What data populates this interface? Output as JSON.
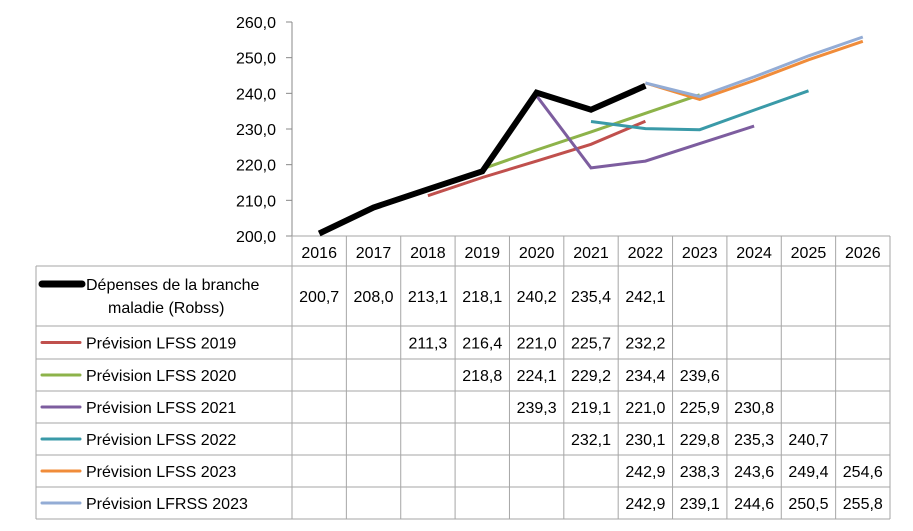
{
  "chart_data": {
    "type": "line",
    "categories": [
      "2016",
      "2017",
      "2018",
      "2019",
      "2020",
      "2021",
      "2022",
      "2023",
      "2024",
      "2025",
      "2026"
    ],
    "ylim": [
      200,
      260
    ],
    "yticks": [
      "200,0",
      "210,0",
      "220,0",
      "230,0",
      "240,0",
      "250,0",
      "260,0"
    ],
    "grid": false,
    "legend": "data-table",
    "series": [
      {
        "name_lines": [
          "Dépenses de la branche",
          "maladie (Robss)"
        ],
        "color": "#000000",
        "values": [
          200.7,
          208.0,
          213.1,
          218.1,
          240.2,
          235.4,
          242.1,
          null,
          null,
          null,
          null
        ],
        "labels": [
          "200,7",
          "208,0",
          "213,1",
          "218,1",
          "240,2",
          "235,4",
          "242,1",
          "",
          "",
          "",
          ""
        ]
      },
      {
        "name_lines": [
          "Prévision LFSS 2019"
        ],
        "color": "#c0504d",
        "values": [
          null,
          null,
          211.3,
          216.4,
          221.0,
          225.7,
          232.2,
          null,
          null,
          null,
          null
        ],
        "labels": [
          "",
          "",
          "211,3",
          "216,4",
          "221,0",
          "225,7",
          "232,2",
          "",
          "",
          "",
          ""
        ]
      },
      {
        "name_lines": [
          "Prévision LFSS 2020"
        ],
        "color": "#8db34a",
        "values": [
          null,
          null,
          null,
          218.8,
          224.1,
          229.2,
          234.4,
          239.6,
          null,
          null,
          null
        ],
        "labels": [
          "",
          "",
          "",
          "218,8",
          "224,1",
          "229,2",
          "234,4",
          "239,6",
          "",
          "",
          ""
        ]
      },
      {
        "name_lines": [
          "Prévision LFSS 2021"
        ],
        "color": "#7d5d9f",
        "values": [
          null,
          null,
          null,
          null,
          239.3,
          219.1,
          221.0,
          225.9,
          230.8,
          null,
          null
        ],
        "labels": [
          "",
          "",
          "",
          "",
          "239,3",
          "219,1",
          "221,0",
          "225,9",
          "230,8",
          "",
          ""
        ]
      },
      {
        "name_lines": [
          "Prévision LFSS 2022"
        ],
        "color": "#3a9aa8",
        "values": [
          null,
          null,
          null,
          null,
          null,
          232.1,
          230.1,
          229.8,
          235.3,
          240.7,
          null
        ],
        "labels": [
          "",
          "",
          "",
          "",
          "",
          "232,1",
          "230,1",
          "229,8",
          "235,3",
          "240,7",
          ""
        ]
      },
      {
        "name_lines": [
          "Prévision LFSS 2023"
        ],
        "color": "#f08c3a",
        "values": [
          null,
          null,
          null,
          null,
          null,
          null,
          242.9,
          238.3,
          243.6,
          249.4,
          254.6
        ],
        "labels": [
          "",
          "",
          "",
          "",
          "",
          "",
          "242,9",
          "238,3",
          "243,6",
          "249,4",
          "254,6"
        ]
      },
      {
        "name_lines": [
          "Prévision LFRSS 2023"
        ],
        "color": "#93acd5",
        "values": [
          null,
          null,
          null,
          null,
          null,
          null,
          242.9,
          239.1,
          244.6,
          250.5,
          255.8
        ],
        "labels": [
          "",
          "",
          "",
          "",
          "",
          "",
          "242,9",
          "239,1",
          "244,6",
          "250,5",
          "255,8"
        ]
      }
    ]
  }
}
